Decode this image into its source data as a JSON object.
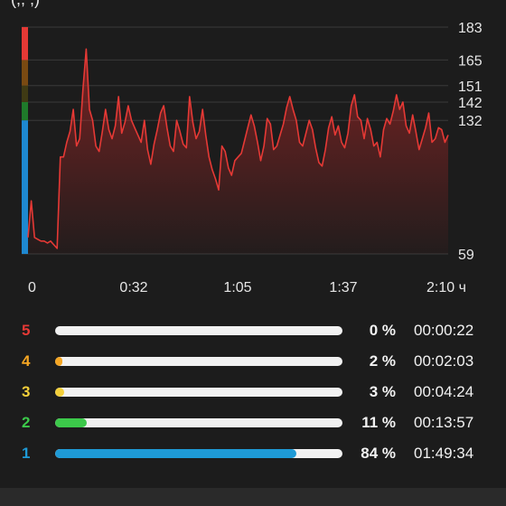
{
  "header": {
    "title_fragment": "(,,  ,)"
  },
  "chart_data": {
    "type": "line",
    "x_unit_label": "ч",
    "x_ticks": [
      "0",
      "0:32",
      "1:05",
      "1:37",
      "2:10 ч"
    ],
    "y_ticks": [
      183,
      165,
      151,
      142,
      132,
      59
    ],
    "ylim": [
      59,
      183
    ],
    "xlim_minutes": [
      0,
      130
    ],
    "grid": true,
    "zone_band_colors": [
      "#e53935",
      "#7a4a12",
      "#3f3a14",
      "#1f7a2a",
      "#1e88d0"
    ],
    "line_color": "#e53935",
    "fill_color": "#e53935",
    "series": [
      {
        "x": [
          0,
          1,
          2,
          3,
          4,
          5,
          6,
          7,
          8,
          9,
          10,
          11,
          12,
          13,
          14,
          15,
          16,
          17,
          18,
          19,
          20,
          21,
          22,
          23,
          24,
          25,
          26,
          27,
          28,
          29,
          30,
          31,
          32,
          33,
          34,
          35,
          36,
          37,
          38,
          39,
          40,
          41,
          42,
          43,
          44,
          45,
          46,
          47,
          48,
          49,
          50,
          51,
          52,
          53,
          54,
          55,
          56,
          57,
          58,
          59,
          60,
          61,
          62,
          63,
          64,
          65,
          66,
          67,
          68,
          69,
          70,
          71,
          72,
          73,
          74,
          75,
          76,
          77,
          78,
          79,
          80,
          81,
          82,
          83,
          84,
          85,
          86,
          87,
          88,
          89,
          90,
          91,
          92,
          93,
          94,
          95,
          96,
          97,
          98,
          99,
          100,
          101,
          102,
          103,
          104,
          105,
          106,
          107,
          108,
          109,
          110,
          111,
          112,
          113,
          114,
          115,
          116,
          117,
          118,
          119,
          120,
          121,
          122,
          123,
          124,
          125,
          126,
          127,
          128,
          129,
          130
        ],
        "y": [
          68,
          88,
          68,
          67,
          66,
          66,
          65,
          66,
          64,
          62,
          112,
          112,
          120,
          126,
          138,
          118,
          122,
          149,
          171,
          138,
          132,
          118,
          115,
          126,
          138,
          127,
          122,
          129,
          145,
          125,
          131,
          140,
          132,
          128,
          124,
          120,
          132,
          116,
          108,
          119,
          127,
          136,
          140,
          128,
          118,
          115,
          132,
          126,
          119,
          117,
          145,
          131,
          122,
          126,
          138,
          124,
          112,
          105,
          100,
          94,
          118,
          115,
          106,
          102,
          110,
          112,
          114,
          121,
          128,
          135,
          129,
          120,
          110,
          118,
          133,
          130,
          116,
          118,
          124,
          130,
          139,
          145,
          138,
          132,
          120,
          118,
          125,
          132,
          127,
          117,
          109,
          107,
          116,
          128,
          134,
          124,
          129,
          120,
          117,
          125,
          140,
          146,
          134,
          132,
          122,
          133,
          127,
          118,
          120,
          112,
          127,
          133,
          130,
          137,
          146,
          138,
          142,
          129,
          125,
          135,
          126,
          116,
          122,
          128,
          136,
          120,
          122,
          128,
          127,
          120,
          124
        ]
      }
    ]
  },
  "zones": [
    {
      "zone": "5",
      "color": "#e53935",
      "fraction": 0.0,
      "percent_text": "0 %",
      "time": "00:00:22"
    },
    {
      "zone": "4",
      "color": "#f5a623",
      "fraction": 0.02,
      "percent_text": "2 %",
      "time": "00:02:03"
    },
    {
      "zone": "3",
      "color": "#f3cf3a",
      "fraction": 0.03,
      "percent_text": "3 %",
      "time": "00:04:24"
    },
    {
      "zone": "2",
      "color": "#3cc94a",
      "fraction": 0.11,
      "percent_text": "11 %",
      "time": "00:13:57"
    },
    {
      "zone": "1",
      "color": "#1e9ad6",
      "fraction": 0.84,
      "percent_text": "84 %",
      "time": "01:49:34"
    }
  ]
}
